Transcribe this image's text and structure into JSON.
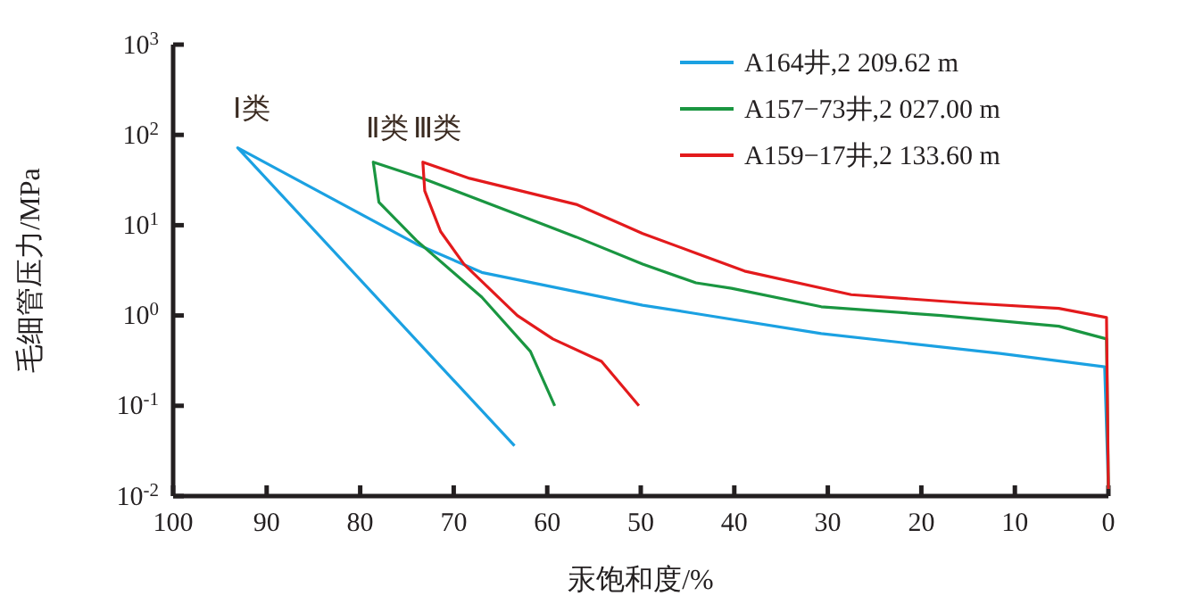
{
  "chart_data": {
    "type": "line",
    "xlabel": "汞饱和度/%",
    "ylabel": "毛细管压力/MPa",
    "log": "y",
    "legend": "top right",
    "grid": false,
    "marker": "none",
    "line_style": "solid",
    "xlim": [
      100,
      0
    ],
    "xticks": [
      100,
      90,
      80,
      70,
      60,
      50,
      40,
      30,
      20,
      10,
      0
    ],
    "ylim": [
      0.01,
      1000
    ],
    "yticks": [
      {
        "value": 0.01,
        "label": "10$^{-2}$"
      },
      {
        "value": 0.1,
        "label": "10$^{-1}$"
      },
      {
        "value": 1,
        "label": "10$^{0}$"
      },
      {
        "value": 10,
        "label": "10$^{1}$"
      },
      {
        "value": 100,
        "label": "10$^{2}$"
      },
      {
        "value": 1000,
        "label": "10$^{3}$"
      }
    ],
    "series": [
      {
        "name": "A164井,2 209.62 m",
        "color": "#1ba1e2",
        "x": [
          63.5,
          93.1,
          74.0,
          67.0,
          49.8,
          44.1,
          30.7,
          11.6,
          0.4,
          0
        ],
        "values": [
          0.036,
          72,
          6.2,
          3.0,
          1.3,
          1.05,
          0.63,
          0.38,
          0.27,
          0.012
        ]
      },
      {
        "name": "A157−73井,2 027.00 m",
        "color": "#1a9641",
        "x": [
          59.2,
          61.8,
          67,
          74,
          78,
          78.6,
          73.3,
          56.9,
          49.8,
          44.1,
          40.3,
          30.7,
          17.9,
          5.3,
          0.2,
          0
        ],
        "values": [
          0.1,
          0.4,
          1.6,
          6.8,
          18,
          50,
          33,
          7.4,
          3.7,
          2.3,
          2.0,
          1.25,
          1.0,
          0.76,
          0.55,
          0.012
        ]
      },
      {
        "name": "A159−17井,2 133.60 m",
        "color": "#e31a1c",
        "x": [
          50.2,
          54.2,
          59.4,
          63.2,
          68.9,
          71.4,
          73.1,
          73.3,
          68.3,
          56.9,
          49.8,
          44.1,
          38.9,
          27.5,
          14.9,
          5.3,
          0.2,
          0
        ],
        "values": [
          0.1,
          0.31,
          0.55,
          1,
          3.7,
          8.5,
          24,
          50,
          33,
          17,
          8.1,
          4.9,
          3.1,
          1.7,
          1.37,
          1.2,
          0.95,
          0.012
        ]
      }
    ],
    "annotations": [
      "Ⅰ类",
      "Ⅱ类",
      "Ⅲ类"
    ]
  }
}
